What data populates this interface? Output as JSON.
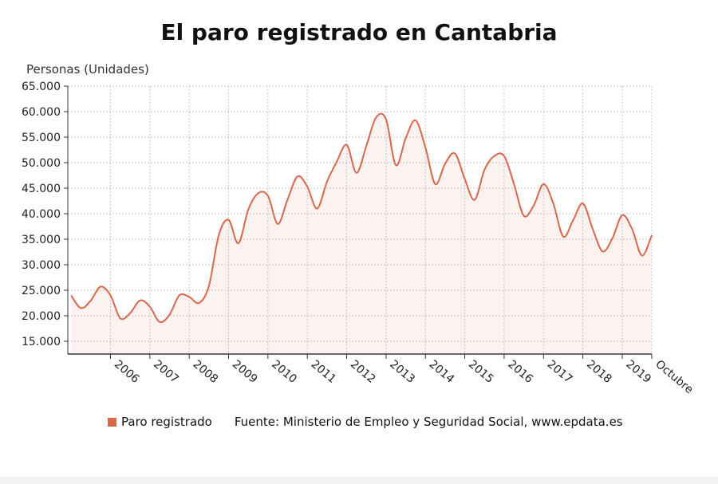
{
  "chart_data": {
    "type": "area",
    "title": "El paro registrado en Cantabria",
    "ylabel": "Personas (Unidades)",
    "ylim": [
      12500,
      65000
    ],
    "yticks": [
      15000,
      20000,
      25000,
      30000,
      35000,
      40000,
      45000,
      50000,
      55000,
      60000,
      65000
    ],
    "ytick_labels": [
      "15.000",
      "20.000",
      "25.000",
      "30.000",
      "35.000",
      "40.000",
      "45.000",
      "50.000",
      "55.000",
      "60.000",
      "65.000"
    ],
    "xticks": [
      2006,
      2007,
      2008,
      2009,
      2010,
      2011,
      2012,
      2013,
      2014,
      2015,
      2016,
      2017,
      2018,
      2019,
      "Octubre"
    ],
    "xtick_labels": [
      "2006",
      "2007",
      "2008",
      "2009",
      "2010",
      "2011",
      "2012",
      "2013",
      "2014",
      "2015",
      "2016",
      "2017",
      "2018",
      "2019",
      "Octubre"
    ],
    "grid": true,
    "legend_position": "bottom",
    "color": "#d9674a",
    "series": [
      {
        "name": "Paro registrado",
        "x": [
          "2005-01",
          "2005-04",
          "2005-07",
          "2005-10",
          "2006-01",
          "2006-04",
          "2006-07",
          "2006-10",
          "2007-01",
          "2007-04",
          "2007-07",
          "2007-10",
          "2008-01",
          "2008-04",
          "2008-07",
          "2008-10",
          "2009-01",
          "2009-04",
          "2009-07",
          "2009-10",
          "2010-01",
          "2010-04",
          "2010-07",
          "2010-10",
          "2011-01",
          "2011-04",
          "2011-07",
          "2011-10",
          "2012-01",
          "2012-04",
          "2012-07",
          "2012-10",
          "2013-01",
          "2013-04",
          "2013-07",
          "2013-10",
          "2014-01",
          "2014-04",
          "2014-07",
          "2014-10",
          "2015-01",
          "2015-04",
          "2015-07",
          "2015-10",
          "2016-01",
          "2016-04",
          "2016-07",
          "2016-10",
          "2017-01",
          "2017-04",
          "2017-07",
          "2017-10",
          "2018-01",
          "2018-04",
          "2018-07",
          "2018-10",
          "2019-01",
          "2019-04",
          "2019-07",
          "2019-10"
        ],
        "values": [
          24000,
          21500,
          23000,
          25700,
          24000,
          19500,
          20500,
          23000,
          21800,
          18800,
          20200,
          24000,
          23700,
          22500,
          25800,
          35800,
          38800,
          34200,
          40800,
          44000,
          43500,
          38000,
          42800,
          47300,
          45300,
          41000,
          46300,
          50200,
          53500,
          48000,
          53300,
          58900,
          58500,
          49500,
          54800,
          58300,
          53000,
          45800,
          49800,
          51800,
          46800,
          42700,
          48600,
          51300,
          51300,
          45800,
          39600,
          41600,
          45800,
          42000,
          35500,
          38700,
          42000,
          37000,
          32600,
          35200,
          39700,
          37000,
          31800,
          35800
        ]
      }
    ]
  },
  "legend": {
    "series_label": "Paro registrado",
    "source": "Fuente: Ministerio de Empleo y Seguridad Social, www.epdata.es"
  }
}
